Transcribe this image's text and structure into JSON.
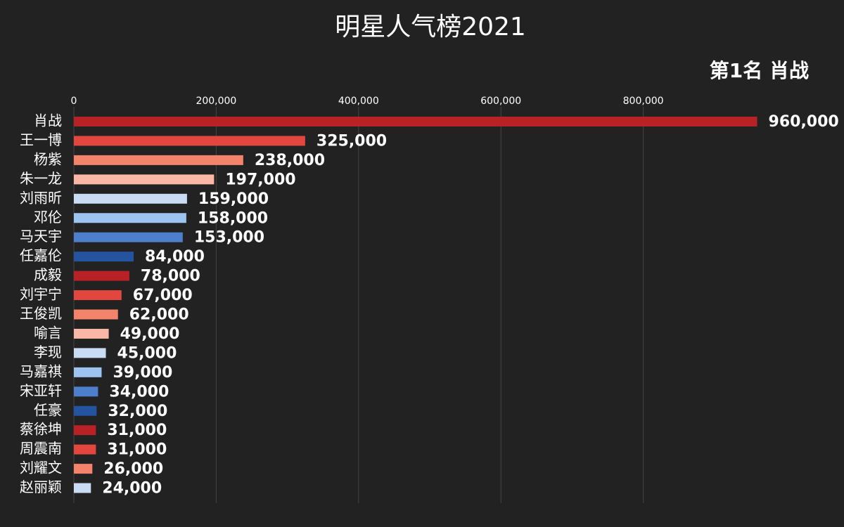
{
  "chart_data": {
    "type": "barh",
    "title": "明星人气榜2021",
    "subtitle": "第1名 肖战",
    "categories": [
      "肖战",
      "王一博",
      "杨紫",
      "朱一龙",
      "刘雨昕",
      "邓伦",
      "马天宇",
      "任嘉伦",
      "成毅",
      "刘宇宁",
      "王俊凯",
      "喻言",
      "李现",
      "马嘉祺",
      "宋亚轩",
      "任豪",
      "蔡徐坤",
      "周震南",
      "刘耀文",
      "赵丽颖"
    ],
    "values": [
      960000,
      325000,
      238000,
      197000,
      159000,
      158000,
      153000,
      84000,
      78000,
      67000,
      62000,
      49000,
      45000,
      39000,
      34000,
      32000,
      31000,
      31000,
      26000,
      24000
    ],
    "value_labels": [
      "960,000",
      "325,000",
      "238,000",
      "197,000",
      "159,000",
      "158,000",
      "153,000",
      "84,000",
      "78,000",
      "67,000",
      "62,000",
      "49,000",
      "45,000",
      "39,000",
      "34,000",
      "32,000",
      "31,000",
      "31,000",
      "26,000",
      "24,000"
    ],
    "colors": [
      "#b82126",
      "#e3463e",
      "#f4836b",
      "#fbb7a5",
      "#c8dcf3",
      "#9dc3f0",
      "#4d7fcc",
      "#24539f",
      "#b82126",
      "#e3463e",
      "#f4836b",
      "#fbb7a5",
      "#c8dcf3",
      "#9dc3f0",
      "#4d7fcc",
      "#24539f",
      "#b82126",
      "#e3463e",
      "#f4836b",
      "#c8dcf3"
    ],
    "xlim": [
      0,
      1000000
    ],
    "xticks": [
      0,
      {
        "value": 200000,
        "label": "200,000"
      },
      {
        "value": 400000,
        "label": "400,000"
      },
      {
        "value": 600000,
        "label": "600,000"
      },
      {
        "value": 800000,
        "label": "800,000"
      }
    ],
    "grid": true
  }
}
